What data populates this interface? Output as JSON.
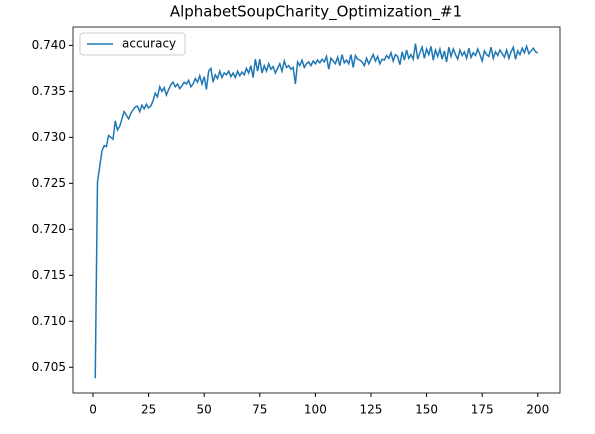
{
  "chart_data": {
    "type": "line",
    "title": "AlphabetSoupCharity_Optimization_#1",
    "x": [
      1,
      2,
      3,
      4,
      5,
      6,
      7,
      8,
      9,
      10,
      11,
      12,
      13,
      14,
      15,
      16,
      17,
      18,
      19,
      20,
      21,
      22,
      23,
      24,
      25,
      26,
      27,
      28,
      29,
      30,
      31,
      32,
      33,
      34,
      35,
      36,
      37,
      38,
      39,
      40,
      41,
      42,
      43,
      44,
      45,
      46,
      47,
      48,
      49,
      50,
      51,
      52,
      53,
      54,
      55,
      56,
      57,
      58,
      59,
      60,
      61,
      62,
      63,
      64,
      65,
      66,
      67,
      68,
      69,
      70,
      71,
      72,
      73,
      74,
      75,
      76,
      77,
      78,
      79,
      80,
      81,
      82,
      83,
      84,
      85,
      86,
      87,
      88,
      89,
      90,
      91,
      92,
      93,
      94,
      95,
      96,
      97,
      98,
      99,
      100,
      101,
      102,
      103,
      104,
      105,
      106,
      107,
      108,
      109,
      110,
      111,
      112,
      113,
      114,
      115,
      116,
      117,
      118,
      119,
      120,
      121,
      122,
      123,
      124,
      125,
      126,
      127,
      128,
      129,
      130,
      131,
      132,
      133,
      134,
      135,
      136,
      137,
      138,
      139,
      140,
      141,
      142,
      143,
      144,
      145,
      146,
      147,
      148,
      149,
      150,
      151,
      152,
      153,
      154,
      155,
      156,
      157,
      158,
      159,
      160,
      161,
      162,
      163,
      164,
      165,
      166,
      167,
      168,
      169,
      170,
      171,
      172,
      173,
      174,
      175,
      176,
      177,
      178,
      179,
      180,
      181,
      182,
      183,
      184,
      185,
      186,
      187,
      188,
      189,
      190,
      191,
      192,
      193,
      194,
      195,
      196,
      197,
      198,
      199,
      200
    ],
    "series": [
      {
        "name": "accuracy",
        "color": "#1f77b4",
        "values": [
          0.7038,
          0.7251,
          0.7268,
          0.7285,
          0.7291,
          0.729,
          0.7302,
          0.73,
          0.7298,
          0.7318,
          0.7308,
          0.7312,
          0.732,
          0.7328,
          0.7324,
          0.732,
          0.7326,
          0.733,
          0.7333,
          0.7334,
          0.7328,
          0.7335,
          0.7331,
          0.7336,
          0.7332,
          0.7334,
          0.734,
          0.7348,
          0.7344,
          0.7355,
          0.735,
          0.7354,
          0.7346,
          0.7352,
          0.7357,
          0.736,
          0.7355,
          0.7358,
          0.7353,
          0.7356,
          0.736,
          0.7358,
          0.7362,
          0.7355,
          0.7358,
          0.7364,
          0.736,
          0.7367,
          0.7358,
          0.7366,
          0.7352,
          0.7372,
          0.7375,
          0.736,
          0.7368,
          0.7364,
          0.7372,
          0.7365,
          0.737,
          0.7368,
          0.7372,
          0.7366,
          0.737,
          0.7365,
          0.7372,
          0.7367,
          0.7371,
          0.7368,
          0.7375,
          0.737,
          0.7378,
          0.7365,
          0.7385,
          0.7372,
          0.7385,
          0.737,
          0.7378,
          0.7372,
          0.738,
          0.7374,
          0.7377,
          0.737,
          0.7375,
          0.738,
          0.7372,
          0.7383,
          0.7376,
          0.7378,
          0.7374,
          0.7376,
          0.7358,
          0.7382,
          0.7378,
          0.7384,
          0.7376,
          0.738,
          0.7382,
          0.7378,
          0.7383,
          0.738,
          0.7384,
          0.7381,
          0.7385,
          0.7382,
          0.7388,
          0.7374,
          0.7386,
          0.7383,
          0.738,
          0.7387,
          0.7378,
          0.739,
          0.7381,
          0.7384,
          0.738,
          0.739,
          0.7376,
          0.7389,
          0.7385,
          0.7384,
          0.7382,
          0.7378,
          0.7386,
          0.738,
          0.7385,
          0.739,
          0.7383,
          0.7388,
          0.738,
          0.7385,
          0.7384,
          0.7389,
          0.7386,
          0.7392,
          0.7383,
          0.739,
          0.7388,
          0.7379,
          0.7393,
          0.7384,
          0.7395,
          0.7386,
          0.739,
          0.7385,
          0.7402,
          0.7385,
          0.7392,
          0.7398,
          0.7386,
          0.7396,
          0.739,
          0.7399,
          0.7384,
          0.7395,
          0.7388,
          0.7396,
          0.7385,
          0.7394,
          0.7382,
          0.7398,
          0.7388,
          0.7396,
          0.739,
          0.7385,
          0.7395,
          0.7389,
          0.7393,
          0.7386,
          0.7397,
          0.7387,
          0.7392,
          0.7389,
          0.7396,
          0.739,
          0.7383,
          0.7394,
          0.739,
          0.7388,
          0.7398,
          0.7386,
          0.7393,
          0.7389,
          0.7395,
          0.7391,
          0.7387,
          0.7395,
          0.7386,
          0.7393,
          0.7398,
          0.7385,
          0.7394,
          0.739,
          0.7397,
          0.7392,
          0.7399,
          0.7391,
          0.7394,
          0.7397,
          0.7393,
          0.7392
        ]
      }
    ],
    "xlim": [
      -9,
      210
    ],
    "xticks": [
      0,
      25,
      50,
      75,
      100,
      125,
      150,
      175,
      200
    ],
    "ylim": [
      0.7022,
      0.742
    ],
    "yticks": [
      {
        "value": 0.705,
        "label": "0.705"
      },
      {
        "value": 0.71,
        "label": "0.710"
      },
      {
        "value": 0.715,
        "label": "0.715"
      },
      {
        "value": 0.72,
        "label": "0.720"
      },
      {
        "value": 0.725,
        "label": "0.725"
      },
      {
        "value": 0.73,
        "label": "0.730"
      },
      {
        "value": 0.735,
        "label": "0.735"
      },
      {
        "value": 0.74,
        "label": "0.740"
      }
    ],
    "legend": "upper left",
    "grid": false
  }
}
